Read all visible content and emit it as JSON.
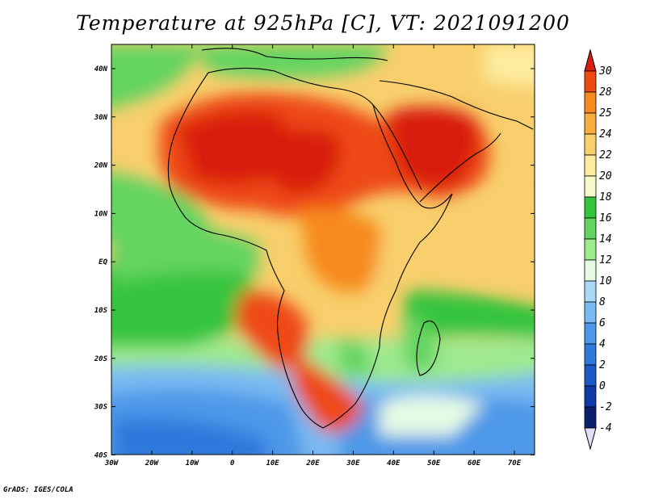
{
  "title": "Temperature at 925hPa [C], VT: 2021091200",
  "credit": "GrADS: IGES/COLA",
  "map": {
    "lat_labels": [
      "40N",
      "30N",
      "20N",
      "10N",
      "EQ",
      "10S",
      "20S",
      "30S",
      "40S"
    ],
    "lon_labels": [
      "30W",
      "20W",
      "10W",
      "0",
      "10E",
      "20E",
      "30E",
      "40E",
      "50E",
      "60E",
      "70E"
    ],
    "extent": {
      "lon_min": -30,
      "lon_max": 75,
      "lat_min": -40,
      "lat_max": 45
    }
  },
  "colorbar": {
    "labels": [
      "30",
      "28",
      "25",
      "24",
      "22",
      "20",
      "18",
      "16",
      "14",
      "12",
      "10",
      "8",
      "6",
      "4",
      "2",
      "0",
      "-2",
      "-4"
    ],
    "colors": [
      "#d81f0f",
      "#ee4a12",
      "#f78a1e",
      "#f7ac3e",
      "#f8cf6c",
      "#fdec9f",
      "#f7fac8",
      "#35c43c",
      "#63d461",
      "#9eea8f",
      "#e6fbe4",
      "#aad8f7",
      "#79baf2",
      "#4d98e8",
      "#2f79dc",
      "#1d59c8",
      "#0f3aa8",
      "#0a1f6e",
      "#e1dff7"
    ]
  }
}
